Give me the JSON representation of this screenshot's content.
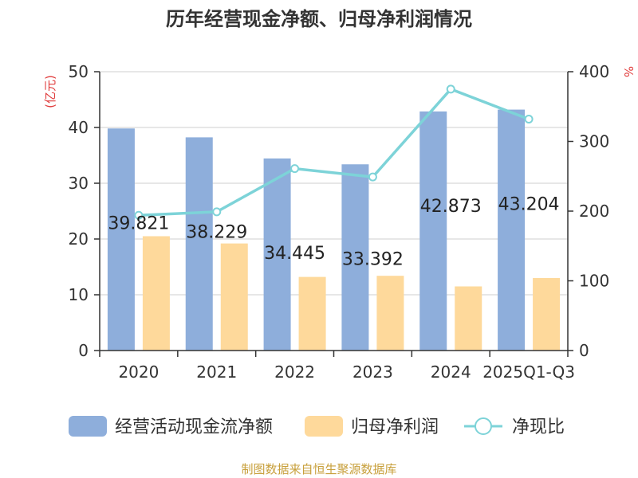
{
  "chart_data": {
    "type": "bar",
    "title": "历年经营现金净额、归母净利润情况",
    "categories": [
      "2020",
      "2021",
      "2022",
      "2023",
      "2024",
      "2025Q1-Q3"
    ],
    "left_axis": {
      "unit": "(亿元)",
      "ylim": [
        0,
        50
      ],
      "ticks": [
        "0",
        "10",
        "20",
        "30",
        "40",
        "50"
      ]
    },
    "right_axis": {
      "unit": "%",
      "ylim": [
        0,
        400
      ],
      "ticks": [
        "0",
        "100",
        "200",
        "300",
        "400"
      ]
    },
    "series": [
      {
        "name": "经营活动现金流净额",
        "kind": "bar",
        "axis": "left",
        "color": "#8eaedb",
        "values": [
          39.821,
          38.229,
          34.445,
          33.392,
          42.873,
          43.204
        ],
        "labels": [
          "39.821",
          "38.229",
          "34.445",
          "33.392",
          "42.873",
          "43.204"
        ]
      },
      {
        "name": "归母净利润",
        "kind": "bar",
        "axis": "left",
        "color": "#fed99b",
        "values": [
          20.5,
          19.2,
          13.2,
          13.4,
          11.5,
          13.0
        ]
      },
      {
        "name": "净现比",
        "kind": "line",
        "axis": "right",
        "color": "#7dd3d8",
        "values": [
          194,
          199,
          261,
          249,
          375,
          332
        ]
      }
    ],
    "grid": true,
    "legend": "bottom",
    "source": "制图数据来自恒生聚源数据库",
    "source_color": "#c8a03c",
    "unit_color": "#e03c3c"
  }
}
